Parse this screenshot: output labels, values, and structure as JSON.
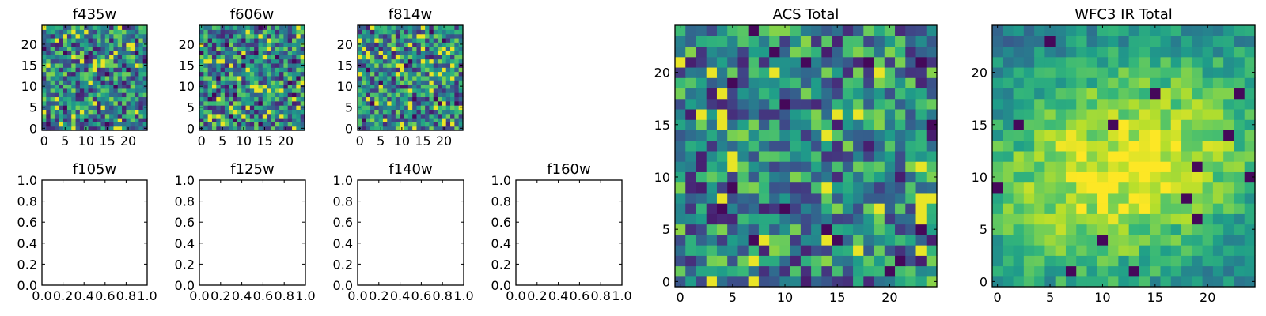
{
  "colormap": "viridis",
  "chart_data": [
    {
      "type": "heatmap",
      "title": "f435w",
      "xlim": [
        -0.5,
        24.5
      ],
      "ylim": [
        -0.5,
        24.5
      ],
      "xticks": [
        "0",
        "5",
        "10",
        "15",
        "20"
      ],
      "yticks": [
        "0",
        "5",
        "10",
        "15",
        "20"
      ],
      "grid_size": 25,
      "pattern": "noise",
      "seed": 11
    },
    {
      "type": "heatmap",
      "title": "f606w",
      "xlim": [
        -0.5,
        24.5
      ],
      "ylim": [
        -0.5,
        24.5
      ],
      "xticks": [
        "0",
        "5",
        "10",
        "15",
        "20"
      ],
      "yticks": [
        "0",
        "5",
        "10",
        "15",
        "20"
      ],
      "grid_size": 25,
      "pattern": "noise",
      "seed": 23
    },
    {
      "type": "heatmap",
      "title": "f814w",
      "xlim": [
        -0.5,
        24.5
      ],
      "ylim": [
        -0.5,
        24.5
      ],
      "xticks": [
        "0",
        "5",
        "10",
        "15",
        "20"
      ],
      "yticks": [
        "0",
        "5",
        "10",
        "15",
        "20"
      ],
      "grid_size": 25,
      "pattern": "noise",
      "seed": 37
    },
    {
      "type": "heatmap",
      "title": "f105w",
      "empty": true,
      "xlim": [
        0,
        1
      ],
      "ylim": [
        0,
        1
      ],
      "xticks": [
        "0.0",
        "0.2",
        "0.4",
        "0.6",
        "0.8",
        "1.0"
      ],
      "yticks": [
        "0.0",
        "0.2",
        "0.4",
        "0.6",
        "0.8",
        "1.0"
      ]
    },
    {
      "type": "heatmap",
      "title": "f125w",
      "empty": true,
      "xlim": [
        0,
        1
      ],
      "ylim": [
        0,
        1
      ],
      "xticks": [
        "0.0",
        "0.2",
        "0.4",
        "0.6",
        "0.8",
        "1.0"
      ],
      "yticks": [
        "0.0",
        "0.2",
        "0.4",
        "0.6",
        "0.8",
        "1.0"
      ]
    },
    {
      "type": "heatmap",
      "title": "f140w",
      "empty": true,
      "xlim": [
        0,
        1
      ],
      "ylim": [
        0,
        1
      ],
      "xticks": [
        "0.0",
        "0.2",
        "0.4",
        "0.6",
        "0.8",
        "1.0"
      ],
      "yticks": [
        "0.0",
        "0.2",
        "0.4",
        "0.6",
        "0.8",
        "1.0"
      ]
    },
    {
      "type": "heatmap",
      "title": "f160w",
      "empty": true,
      "xlim": [
        0,
        1
      ],
      "ylim": [
        0,
        1
      ],
      "xticks": [
        "0.0",
        "0.2",
        "0.4",
        "0.6",
        "0.8",
        "1.0"
      ],
      "yticks": [
        "0.0",
        "0.2",
        "0.4",
        "0.6",
        "0.8",
        "1.0"
      ]
    },
    {
      "type": "heatmap",
      "title": "ACS Total",
      "xlim": [
        -0.5,
        24.5
      ],
      "ylim": [
        -0.5,
        24.5
      ],
      "xticks": [
        "0",
        "5",
        "10",
        "15",
        "20"
      ],
      "yticks": [
        "0",
        "5",
        "10",
        "15",
        "20"
      ],
      "grid_size": 25,
      "pattern": "noise",
      "seed": 53
    },
    {
      "type": "heatmap",
      "title": "WFC3 IR Total",
      "xlim": [
        -0.5,
        24.5
      ],
      "ylim": [
        -0.5,
        24.5
      ],
      "xticks": [
        "0",
        "5",
        "10",
        "15",
        "20"
      ],
      "yticks": [
        "0",
        "5",
        "10",
        "15",
        "20"
      ],
      "grid_size": 25,
      "pattern": "blob",
      "seed": 71,
      "blob_center": [
        12,
        11
      ]
    }
  ]
}
